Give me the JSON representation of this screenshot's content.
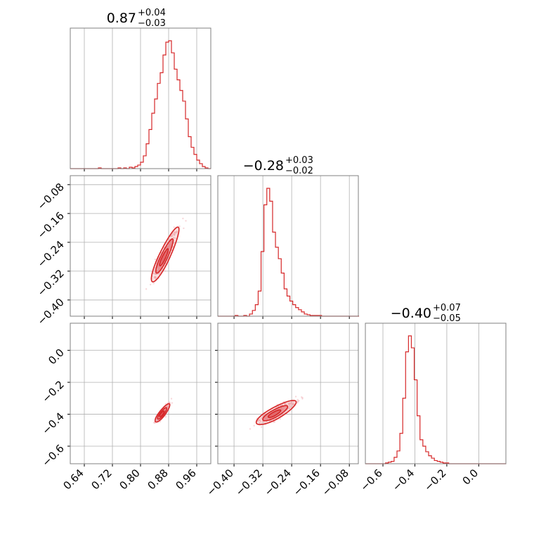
{
  "colors": {
    "accent": "#d62728",
    "light": "#f2b8bd",
    "grid": "#b0b0b0",
    "frame": "#808080"
  },
  "chart_data": {
    "type": "corner",
    "title": "",
    "parameters": [
      {
        "id": "p0",
        "title": {
          "median": "0.87",
          "plus": "+0.04",
          "minus": "−0.03"
        },
        "range": [
          0.6,
          1.0
        ],
        "ticks": [
          0.64,
          0.72,
          0.8,
          0.88,
          0.96
        ],
        "tick_labels": [
          "0.64",
          "0.72",
          "0.80",
          "0.88",
          "0.96"
        ],
        "histogram": {
          "bin_edges": [
            0.6,
            0.608,
            0.616,
            0.624,
            0.632,
            0.64,
            0.648,
            0.656,
            0.664,
            0.672,
            0.68,
            0.688,
            0.696,
            0.704,
            0.712,
            0.72,
            0.728,
            0.736,
            0.744,
            0.752,
            0.76,
            0.768,
            0.776,
            0.784,
            0.792,
            0.8,
            0.808,
            0.816,
            0.824,
            0.832,
            0.84,
            0.848,
            0.856,
            0.864,
            0.872,
            0.88,
            0.888,
            0.896,
            0.904,
            0.912,
            0.92,
            0.928,
            0.936,
            0.944,
            0.952,
            0.96,
            0.968,
            0.976,
            0.984,
            0.992,
            1.0
          ],
          "counts": [
            0,
            0,
            0,
            0,
            0,
            0,
            0,
            0,
            0,
            0,
            1,
            0,
            0,
            0,
            0,
            0,
            0,
            1,
            0,
            1,
            0,
            2,
            1,
            3,
            5,
            9,
            18,
            35,
            55,
            78,
            98,
            120,
            135,
            160,
            178,
            180,
            163,
            140,
            125,
            110,
            95,
            70,
            45,
            30,
            20,
            12,
            7,
            3,
            1,
            0
          ]
        }
      },
      {
        "id": "p1",
        "title": {
          "median": "−0.28",
          "plus": "+0.03",
          "minus": "−0.02"
        },
        "range": [
          -0.445,
          -0.055
        ],
        "ticks": [
          -0.4,
          -0.32,
          -0.24,
          -0.16,
          -0.08
        ],
        "tick_labels": [
          "−0.40",
          "−0.32",
          "−0.24",
          "−0.16",
          "−0.08"
        ],
        "histogram": {
          "bin_edges": [
            -0.445,
            -0.437,
            -0.429,
            -0.421,
            -0.413,
            -0.405,
            -0.397,
            -0.389,
            -0.381,
            -0.373,
            -0.365,
            -0.357,
            -0.349,
            -0.341,
            -0.333,
            -0.325,
            -0.317,
            -0.309,
            -0.301,
            -0.293,
            -0.285,
            -0.277,
            -0.269,
            -0.261,
            -0.253,
            -0.245,
            -0.237,
            -0.229,
            -0.221,
            -0.213,
            -0.205,
            -0.197,
            -0.189,
            -0.181,
            -0.173,
            -0.165,
            -0.157,
            -0.149,
            -0.141,
            -0.133,
            -0.125,
            -0.117,
            -0.109,
            -0.101,
            -0.093,
            -0.085,
            -0.077,
            -0.069,
            -0.061,
            -0.053
          ],
          "counts": [
            0,
            0,
            0,
            0,
            0,
            0,
            1,
            0,
            0,
            1,
            0,
            3,
            8,
            16,
            35,
            90,
            155,
            178,
            160,
            117,
            96,
            80,
            60,
            38,
            28,
            21,
            16,
            12,
            9,
            6,
            3,
            2,
            1,
            1,
            1,
            1,
            0,
            0,
            0,
            0,
            0,
            0,
            0,
            0,
            0,
            0,
            0,
            0,
            0
          ]
        }
      },
      {
        "id": "p2",
        "title": {
          "median": "−0.40",
          "plus": "+0.07",
          "minus": "−0.05"
        },
        "range": [
          -0.71,
          0.17
        ],
        "ticks": [
          -0.6,
          -0.4,
          -0.2,
          0.0
        ],
        "tick_labels": [
          "−0.6",
          "−0.4",
          "−0.2",
          "0.0"
        ],
        "histogram": {
          "bin_edges": [
            -0.71,
            -0.692,
            -0.674,
            -0.656,
            -0.638,
            -0.62,
            -0.602,
            -0.584,
            -0.566,
            -0.548,
            -0.53,
            -0.512,
            -0.494,
            -0.476,
            -0.458,
            -0.44,
            -0.422,
            -0.404,
            -0.386,
            -0.368,
            -0.35,
            -0.332,
            -0.314,
            -0.296,
            -0.278,
            -0.26,
            -0.242,
            -0.224,
            -0.206,
            -0.188,
            -0.17,
            -0.152,
            -0.134,
            -0.116,
            -0.098,
            -0.08,
            -0.062,
            -0.044,
            -0.026,
            -0.008,
            0.01,
            0.028,
            0.046,
            0.064,
            0.082,
            0.1,
            0.118,
            0.136,
            0.154,
            0.172
          ],
          "counts": [
            0,
            0,
            0,
            0,
            0,
            0,
            0,
            1,
            2,
            3,
            8,
            16,
            38,
            82,
            140,
            160,
            145,
            105,
            60,
            30,
            22,
            15,
            10,
            7,
            4,
            3,
            2,
            1,
            1,
            0,
            0,
            0,
            0,
            0,
            0,
            0,
            0,
            0,
            0,
            0,
            0,
            0,
            0,
            0,
            0,
            0,
            0,
            0,
            0
          ]
        }
      }
    ],
    "pairs": [
      {
        "x": "p0",
        "y": "p1",
        "center": [
          0.865,
          -0.285
        ],
        "slope": 2.06,
        "sigma_major": 0.028,
        "sigma_minor": 0.006,
        "skew": 0.0
      },
      {
        "x": "p0",
        "y": "p2",
        "center": [
          0.86,
          -0.4
        ],
        "slope": 3.1,
        "sigma_major": 0.02,
        "sigma_minor": 0.004,
        "skew": 0.0
      },
      {
        "x": "p1",
        "y": "p2",
        "center": [
          -0.29,
          -0.4
        ],
        "slope": 1.45,
        "sigma_major": 0.03,
        "sigma_minor": 0.01,
        "skew": 0.0
      }
    ],
    "contour_levels": [
      0.5,
      1.0,
      1.6
    ],
    "grid": true
  }
}
